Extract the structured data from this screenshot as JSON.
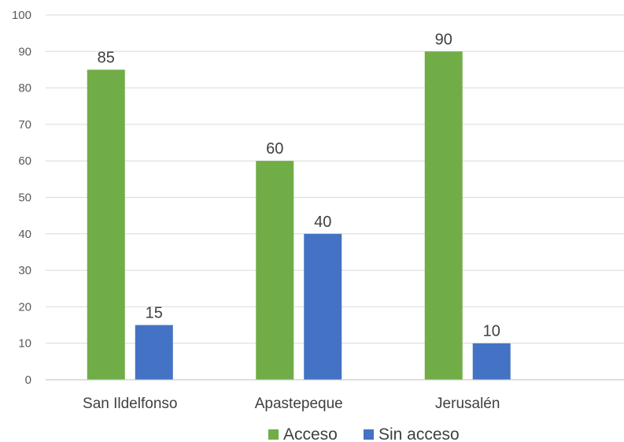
{
  "chart_data": {
    "type": "bar",
    "title": "",
    "xlabel": "",
    "ylabel": "",
    "categories": [
      "San Ildelfonso",
      "Apastepeque",
      "Jerusalén"
    ],
    "series": [
      {
        "name": "Acceso",
        "values": [
          85,
          60,
          90
        ],
        "color": "#70ad47"
      },
      {
        "name": "Sin acceso",
        "values": [
          15,
          40,
          10
        ],
        "color": "#4472c4"
      }
    ],
    "ylim": [
      0,
      100
    ],
    "yticks": [
      "0",
      "10",
      "20",
      "30",
      "40",
      "50",
      "60",
      "70",
      "80",
      "90",
      "100"
    ],
    "grid": true,
    "legend_position": "bottom",
    "data_labels": true
  }
}
